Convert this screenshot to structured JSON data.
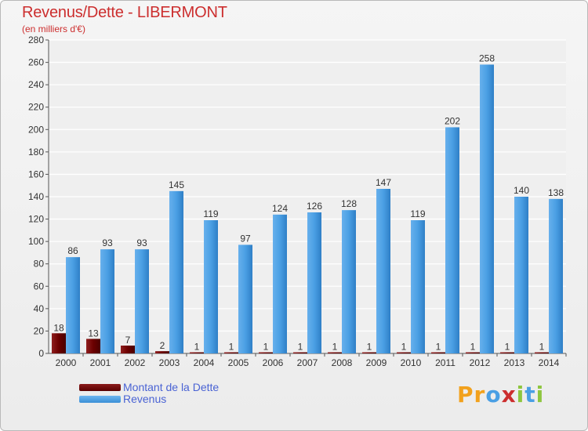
{
  "header": {
    "title": "Revenus/Dette - LIBERMONT",
    "subtitle": "(en milliers d'€)"
  },
  "legend": [
    {
      "label": "Montant de la Dette",
      "color": "#6b0000"
    },
    {
      "label": "Revenus",
      "color": "#4a9fe4"
    }
  ],
  "logo": {
    "text": "Proxiti",
    "letters": [
      "P",
      "r",
      "o",
      "x",
      "i",
      "t",
      "i"
    ],
    "colors": [
      "#f2a11c",
      "#f2a11c",
      "#4a9fe4",
      "#cc2e2e",
      "#8ec63f",
      "#4a9fe4",
      "#8ec63f"
    ]
  },
  "chart_data": {
    "type": "bar",
    "title": "Revenus/Dette - LIBERMONT",
    "subtitle": "(en milliers d'€)",
    "categories": [
      "2000",
      "2001",
      "2002",
      "2003",
      "2004",
      "2005",
      "2006",
      "2007",
      "2008",
      "2009",
      "2010",
      "2011",
      "2012",
      "2013",
      "2014"
    ],
    "series": [
      {
        "name": "Montant de la Dette",
        "color": "#6b0000",
        "values": [
          18,
          13,
          7,
          2,
          1,
          1,
          1,
          1,
          1,
          1,
          1,
          1,
          1,
          1,
          1
        ]
      },
      {
        "name": "Revenus",
        "color": "#4a9fe4",
        "values": [
          86,
          93,
          93,
          145,
          119,
          97,
          124,
          126,
          128,
          147,
          119,
          202,
          258,
          140,
          138
        ]
      }
    ],
    "y_ticks": [
      0,
      20,
      40,
      60,
      80,
      100,
      120,
      140,
      160,
      180,
      200,
      220,
      240,
      260,
      280
    ],
    "ylim": [
      0,
      280
    ],
    "grid": true,
    "legend_position": "bottom-left"
  }
}
